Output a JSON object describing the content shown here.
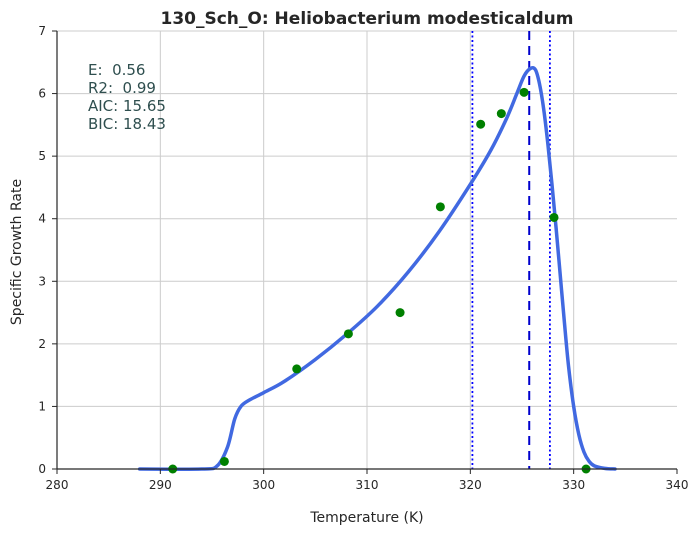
{
  "chart_data": {
    "type": "scatter",
    "title": "130_Sch_O: Heliobacterium modesticaldum",
    "xlabel": "Temperature (K)",
    "ylabel": "Specific Growth Rate",
    "xlim": [
      280,
      340
    ],
    "ylim": [
      0,
      7
    ],
    "xticks": [
      280,
      290,
      300,
      310,
      320,
      330,
      340
    ],
    "yticks": [
      0,
      1,
      2,
      3,
      4,
      5,
      6,
      7
    ],
    "grid": true,
    "annotation": [
      "E:  0.56",
      "R2:  0.99",
      "AIC: 15.65",
      "BIC: 18.43"
    ],
    "points": {
      "color": "#008000",
      "x": [
        291.2,
        296.2,
        303.2,
        308.2,
        313.2,
        317.1,
        321.0,
        323.0,
        325.2,
        328.1,
        331.2
      ],
      "y": [
        0.0,
        0.12,
        1.6,
        2.16,
        2.5,
        4.19,
        5.51,
        5.68,
        6.02,
        4.02,
        0.0
      ]
    },
    "fit": {
      "color": "#4169e1",
      "x": [
        288.0,
        294.0,
        295.5,
        296.5,
        297.2,
        297.8,
        298.6,
        300.0,
        302.0,
        305.0,
        308.0,
        311.0,
        314.0,
        317.0,
        320.0,
        322.0,
        323.5,
        324.5,
        325.2,
        325.8,
        326.3,
        326.7,
        327.1,
        327.5,
        327.9,
        328.3,
        328.7,
        329.1,
        329.5,
        330.0,
        330.5,
        331.0,
        331.5,
        332.0,
        333.0,
        334.0
      ],
      "y": [
        0.0,
        0.0,
        0.05,
        0.35,
        0.8,
        1.0,
        1.1,
        1.22,
        1.4,
        1.75,
        2.15,
        2.6,
        3.15,
        3.8,
        4.55,
        5.1,
        5.6,
        6.0,
        6.28,
        6.4,
        6.38,
        6.15,
        5.75,
        5.2,
        4.55,
        3.85,
        3.1,
        2.35,
        1.65,
        1.0,
        0.55,
        0.27,
        0.12,
        0.05,
        0.01,
        0.0
      ]
    },
    "vlines": [
      {
        "x": 325.7,
        "style": "dashed",
        "color": "#0000cc"
      },
      {
        "x": 320.2,
        "style": "dotted",
        "color": "#0000ff"
      },
      {
        "x": 327.7,
        "style": "dotted",
        "color": "#0000ff"
      }
    ]
  }
}
